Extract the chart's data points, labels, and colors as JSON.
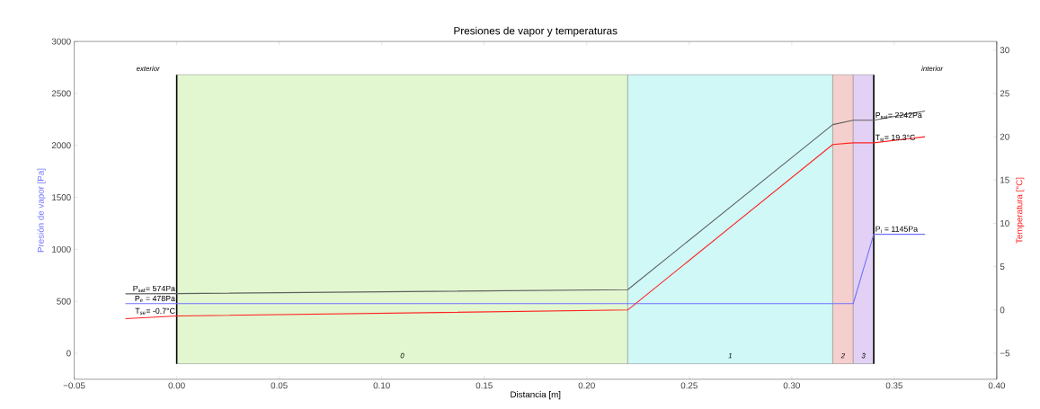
{
  "chart_data": {
    "type": "line",
    "title": "Presiones de vapor y temperaturas",
    "xlabel": "Distancia [m]",
    "ylabel": "Presión de vapor [Pa]",
    "y2label": "Temperatura [°C]",
    "xlim": [
      -0.05,
      0.4
    ],
    "xticks": [
      {
        "value": -0.05,
        "label": "−0.05"
      },
      {
        "value": 0,
        "label": "0.00"
      },
      {
        "value": 0.05,
        "label": "0.05"
      },
      {
        "value": 0.1,
        "label": "0.10"
      },
      {
        "value": 0.15,
        "label": "0.15"
      },
      {
        "value": 0.2,
        "label": "0.20"
      },
      {
        "value": 0.25,
        "label": "0.25"
      },
      {
        "value": 0.3,
        "label": "0.30"
      },
      {
        "value": 0.35,
        "label": "0.35"
      },
      {
        "value": 0.4,
        "label": "0.40"
      }
    ],
    "ylim": [
      -250,
      3000
    ],
    "yticks": [
      0,
      500,
      1000,
      1500,
      2000,
      2500,
      3000
    ],
    "y2lim": [
      -8,
      31
    ],
    "y2ticks": [
      {
        "value": -5,
        "label": "−5"
      },
      0,
      5,
      10,
      15,
      20,
      25,
      30
    ],
    "series": [
      {
        "color": "#7070ff",
        "x": [
          -0.025,
          0,
          0.22,
          0.32,
          0.33,
          0.34,
          0.365
        ],
        "values": [
          478,
          478,
          478,
          478,
          478,
          1145,
          1145
        ],
        "value_labels": [
          null,
          "P$_{e}$ = 478Pa",
          null,
          null,
          null,
          "P$_{i}$ = 1145Pa",
          null
        ]
      },
      {
        "color": "#606060",
        "x": [
          -0.025,
          0,
          0.22,
          0.32,
          0.33,
          0.34,
          0.365
        ],
        "values": [
          572,
          574,
          612,
          2200,
          2242,
          2242,
          2330
        ],
        "value_labels": [
          null,
          "P$_{sat}$=  574Pa",
          null,
          null,
          null,
          "P$_{sat}$=  2242Pa",
          null
        ]
      },
      {
        "color": "#ff2020",
        "axis": "y2",
        "x": [
          -0.025,
          0,
          0.22,
          0.32,
          0.33,
          0.34,
          0.365
        ],
        "values": [
          -1.0,
          -0.7,
          0.0,
          19.1,
          19.3,
          19.3,
          20.0
        ],
        "value_labels": [
          null,
          "T$_{se}$= -0.7°C",
          null,
          null,
          null,
          "T$_{si}$= 19.3°C",
          null
        ]
      }
    ],
    "bands": [
      {
        "axis": "x",
        "from": 0,
        "to": 0.22,
        "label": "0",
        "color": "#e2f7d0"
      },
      {
        "axis": "x",
        "from": 0.22,
        "to": 0.32,
        "label": "1",
        "color": "#cff8f6"
      },
      {
        "axis": "x",
        "from": 0.32,
        "to": 0.33,
        "label": "2",
        "color": "#f5cfcd"
      },
      {
        "axis": "x",
        "from": 0.33,
        "to": 0.34,
        "label": "3",
        "color": "#e2d0f5"
      }
    ],
    "ref_lines": [
      {
        "axis": "x",
        "value": 0,
        "color": "#000000"
      },
      {
        "axis": "x",
        "value": 0.34,
        "color": "#000000"
      }
    ],
    "annotations": [
      "exterior",
      "interior"
    ]
  }
}
